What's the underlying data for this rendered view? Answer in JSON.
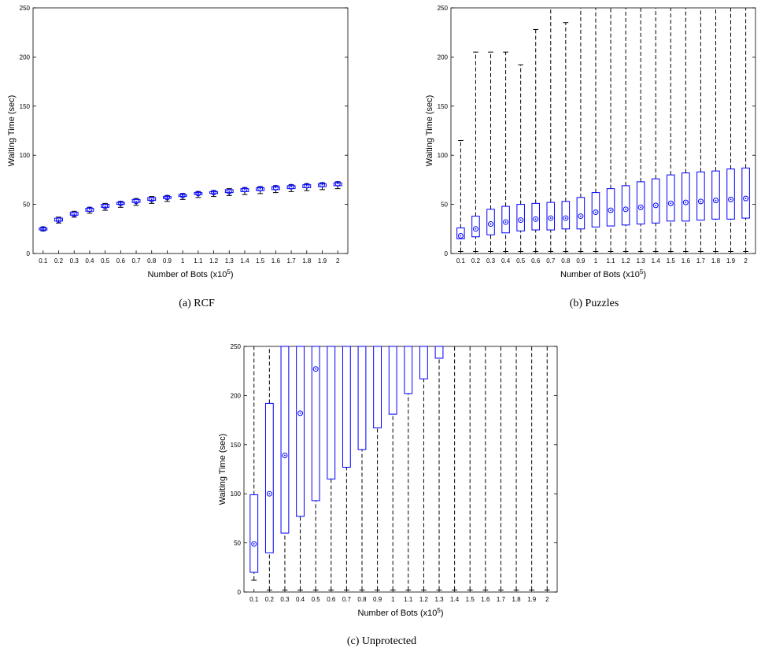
{
  "chart_data": [
    {
      "id": "a",
      "type": "box",
      "caption": "(a)  RCF",
      "xlabel": "Number of Bots (x10",
      "xlabel_sup": "5",
      "xlabel_end": ")",
      "ylabel": "Waiting Time (sec)",
      "ylim": [
        0,
        250
      ],
      "yticks": [
        0,
        50,
        100,
        150,
        200,
        250
      ],
      "categories": [
        "0.1",
        "0.2",
        "0.3",
        "0.4",
        "0.5",
        "0.6",
        "0.7",
        "0.8",
        "0.9",
        "1",
        "1.1",
        "1.2",
        "1.3",
        "1.4",
        "1.5",
        "1.6",
        "1.7",
        "1.8",
        "1.9",
        "2"
      ],
      "median": [
        25,
        34,
        40,
        45,
        48,
        51,
        53,
        55,
        57,
        59,
        61,
        62,
        63,
        65,
        66,
        67,
        68,
        69,
        70,
        71
      ],
      "q1": [
        24,
        33,
        39,
        43,
        47,
        50,
        52,
        54,
        56,
        58,
        60,
        61,
        62,
        63,
        64,
        65,
        66,
        67,
        68,
        69
      ],
      "q3": [
        26,
        36,
        42,
        46,
        50,
        52,
        55,
        57,
        58,
        60,
        62,
        63,
        65,
        66,
        67,
        68,
        69,
        70,
        71,
        72
      ],
      "whisker_low": [
        23,
        31,
        37,
        41,
        44,
        47,
        49,
        51,
        53,
        55,
        57,
        58,
        59,
        60,
        61,
        62,
        63,
        64,
        65,
        66
      ],
      "whisker_high": [
        27,
        37,
        43,
        47,
        51,
        53,
        56,
        58,
        59,
        61,
        63,
        64,
        66,
        67,
        68,
        69,
        70,
        71,
        72,
        73
      ]
    },
    {
      "id": "b",
      "type": "box",
      "caption": "(b)  Puzzles",
      "xlabel": "Number of Bots (x10",
      "xlabel_sup": "5",
      "xlabel_end": ")",
      "ylabel": "Waiting Time (sec)",
      "ylim": [
        0,
        250
      ],
      "yticks": [
        0,
        50,
        100,
        150,
        200,
        250
      ],
      "categories": [
        "0.1",
        "0.2",
        "0.3",
        "0.4",
        "0.5",
        "0.6",
        "0.7",
        "0.8",
        "0.9",
        "1",
        "1.1",
        "1.2",
        "1.3",
        "1.4",
        "1.5",
        "1.6",
        "1.7",
        "1.8",
        "1.9",
        "2"
      ],
      "median": [
        18,
        25,
        30,
        32,
        34,
        35,
        36,
        36,
        38,
        42,
        44,
        45,
        47,
        49,
        51,
        52,
        53,
        54,
        55,
        56
      ],
      "q1": [
        15,
        17,
        19,
        21,
        23,
        24,
        24,
        25,
        25,
        27,
        28,
        29,
        30,
        31,
        33,
        33,
        34,
        35,
        35,
        36
      ],
      "q3": [
        26,
        38,
        45,
        48,
        50,
        51,
        52,
        53,
        57,
        62,
        66,
        69,
        73,
        76,
        80,
        82,
        83,
        84,
        86,
        87
      ],
      "whisker_low": [
        2,
        2,
        2,
        2,
        2,
        2,
        2,
        2,
        2,
        2,
        2,
        2,
        2,
        2,
        2,
        2,
        2,
        2,
        2,
        2
      ],
      "whisker_high": [
        115,
        205,
        205,
        205,
        192,
        228,
        250,
        235,
        250,
        250,
        250,
        250,
        250,
        250,
        250,
        250,
        250,
        250,
        250,
        250
      ]
    },
    {
      "id": "c",
      "type": "box",
      "caption": "(c)  Unprotected",
      "xlabel": "Number of Bots (x10",
      "xlabel_sup": "5",
      "xlabel_end": ")",
      "ylabel": "Waiting Time (sec)",
      "ylim": [
        0,
        250
      ],
      "yticks": [
        0,
        50,
        100,
        150,
        200,
        250
      ],
      "categories": [
        "0.1",
        "0.2",
        "0.3",
        "0.4",
        "0.5",
        "0.6",
        "0.7",
        "0.8",
        "0.9",
        "1",
        "1.1",
        "1.2",
        "1.3",
        "1.4",
        "1.5",
        "1.6",
        "1.7",
        "1.8",
        "1.9",
        "2"
      ],
      "median": [
        49,
        100,
        139,
        182,
        227,
        null,
        null,
        null,
        null,
        null,
        null,
        null,
        null,
        null,
        null,
        null,
        null,
        null,
        null,
        null
      ],
      "q1": [
        20,
        40,
        60,
        77,
        93,
        115,
        127,
        145,
        167,
        181,
        202,
        217,
        238,
        null,
        null,
        null,
        null,
        null,
        null,
        null
      ],
      "q3": [
        99,
        192,
        250,
        250,
        250,
        250,
        250,
        250,
        250,
        250,
        250,
        250,
        250,
        null,
        null,
        null,
        null,
        null,
        null,
        null
      ],
      "whisker_low": [
        12,
        2,
        2,
        2,
        2,
        2,
        2,
        2,
        2,
        2,
        2,
        2,
        2,
        2,
        2,
        2,
        2,
        2,
        2,
        2
      ],
      "whisker_high": [
        250,
        250,
        250,
        250,
        250,
        250,
        250,
        250,
        250,
        250,
        250,
        250,
        250,
        250,
        250,
        250,
        250,
        250,
        250,
        250
      ]
    }
  ]
}
